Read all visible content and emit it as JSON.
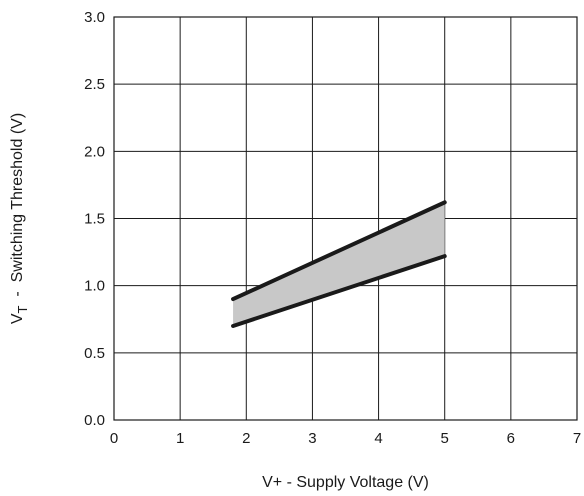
{
  "chart_data": {
    "type": "area",
    "title": "",
    "xlabel": "V+ -  Supply Voltage (V)",
    "ylabel_main": "V",
    "ylabel_sub": "T",
    "ylabel_rest": "  -  Switching Threshold (V)",
    "xlim": [
      0,
      7
    ],
    "ylim": [
      0,
      3.0
    ],
    "x_ticks": [
      "0",
      "1",
      "2",
      "3",
      "4",
      "5",
      "6",
      "7"
    ],
    "y_ticks": [
      "0.0",
      "0.5",
      "1.0",
      "1.5",
      "2.0",
      "2.5",
      "3.0"
    ],
    "grid": true,
    "series": [
      {
        "x": [
          1.8,
          5.0
        ],
        "values": [
          0.9,
          1.62
        ]
      },
      {
        "x": [
          1.8,
          5.0
        ],
        "values": [
          0.7,
          1.22
        ]
      }
    ],
    "band_fill_color": "#c8c8c8",
    "line_color": "#1a1a1a",
    "grid_color": "#1a1a1a"
  }
}
